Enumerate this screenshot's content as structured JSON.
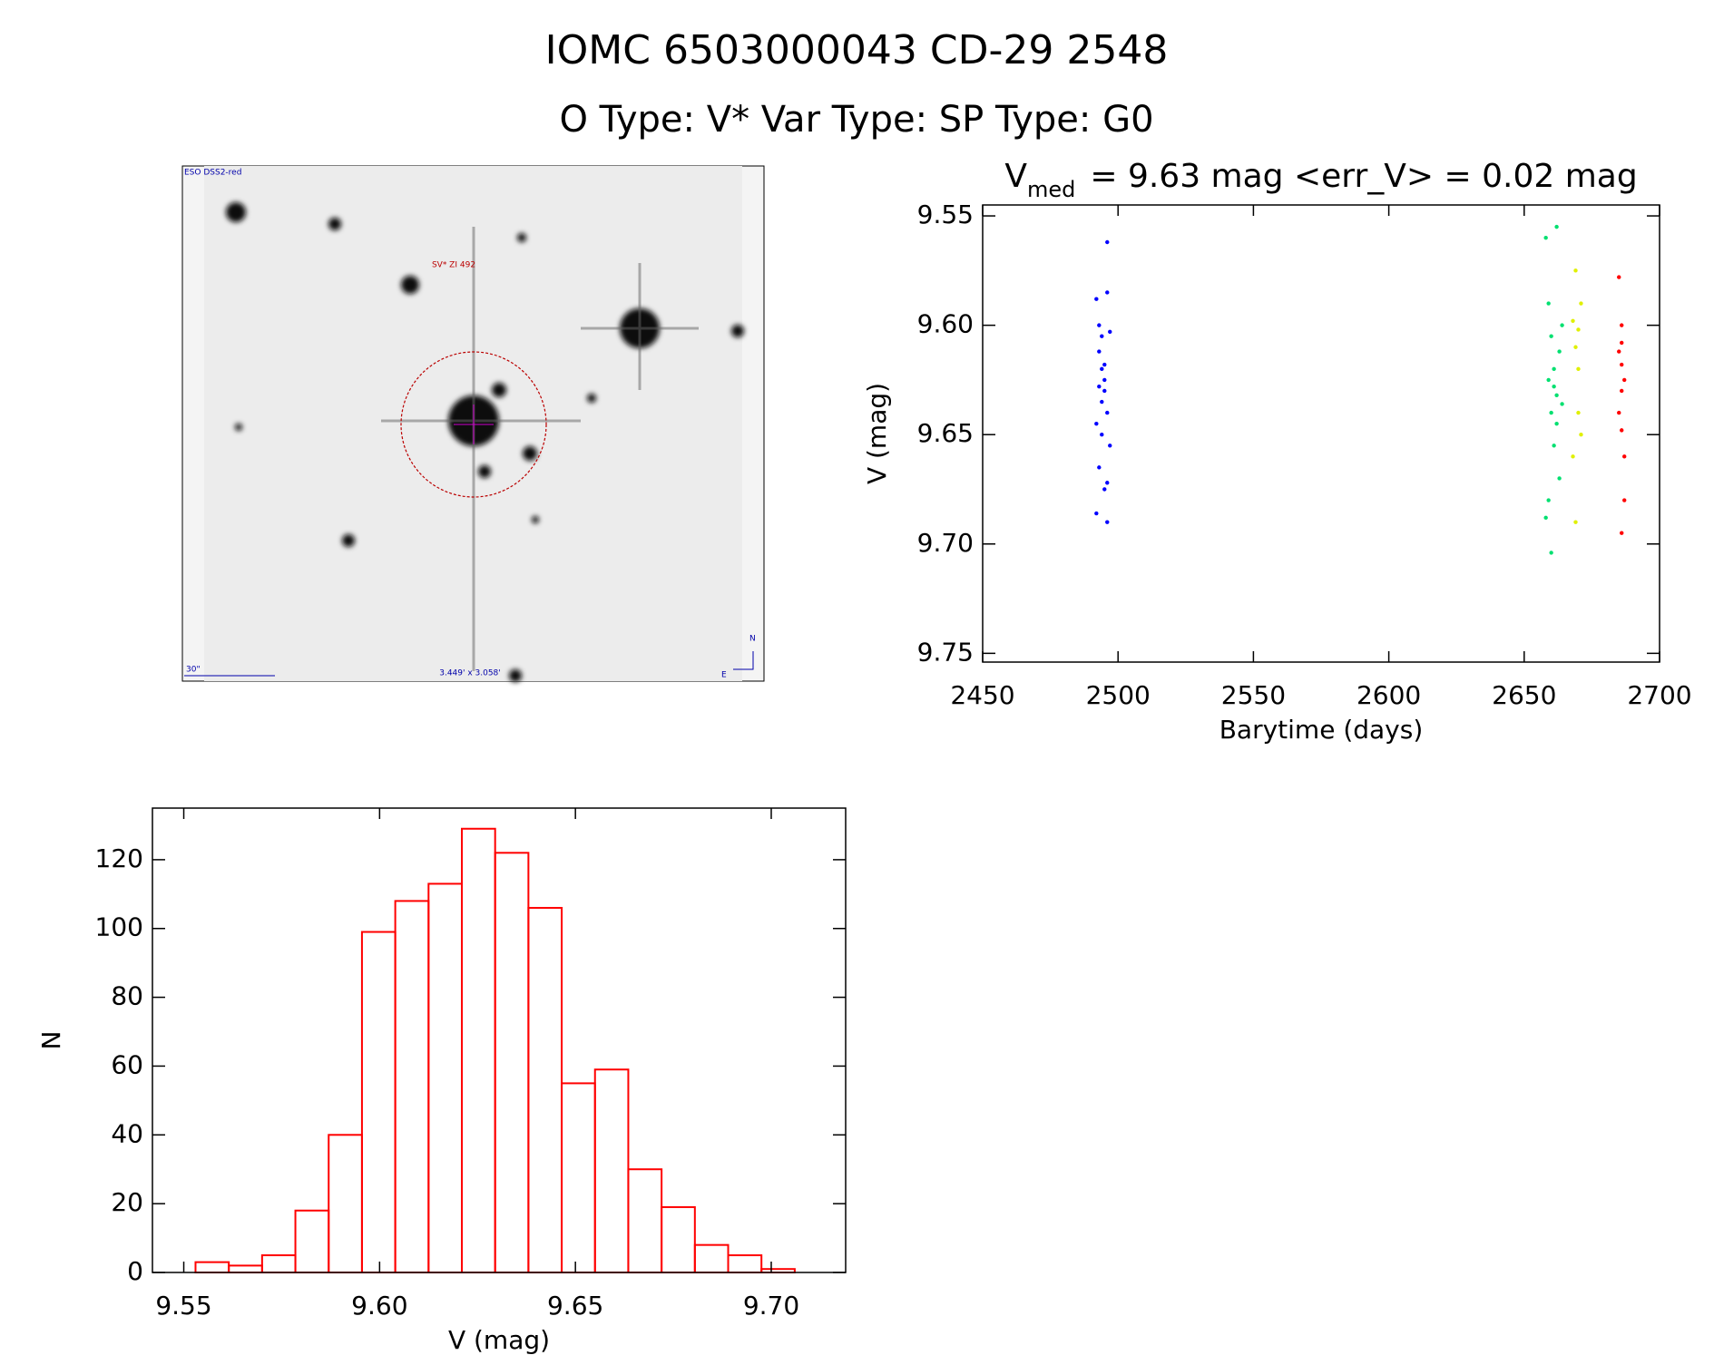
{
  "title": "IOMC 6503000043   CD-29  2548",
  "subtitle": "O Type: V*  Var Type:   SP Type: G0",
  "image": {
    "survey": "ESO DSS2-red",
    "target": "SV* ZI 492",
    "scale": "30\"",
    "fov": "3.449' x 3.058'",
    "north": "N",
    "east": "E"
  },
  "chart_data": [
    {
      "type": "scatter",
      "title": "V",
      "title_subscript": "med",
      "title_rest": "= 9.63 mag <err_V> = 0.02 mag",
      "x_label": "Barytime (days)",
      "y_label": "V (mag)",
      "xlim": [
        2450,
        2700
      ],
      "xticks": [
        2450,
        2500,
        2550,
        2600,
        2650,
        2700
      ],
      "ylim": [
        9.545,
        9.754
      ],
      "y_reversed": true,
      "yticks": [
        {
          "value": 9.55,
          "label": "9.55"
        },
        {
          "value": 9.6,
          "label": "9.60"
        },
        {
          "value": 9.65,
          "label": "9.65"
        },
        {
          "value": 9.7,
          "label": "9.70"
        },
        {
          "value": 9.75,
          "label": "9.75"
        }
      ],
      "series": [
        {
          "color": "#0000ff",
          "x": [
            2492,
            2493,
            2493,
            2494,
            2494,
            2495,
            2495,
            2496,
            2496,
            2492,
            2493,
            2494,
            2495,
            2496,
            2497,
            2492,
            2494,
            2495,
            2496,
            2497,
            2493,
            2496
          ],
          "values": [
            9.588,
            9.6,
            9.612,
            9.62,
            9.605,
            9.63,
            9.618,
            9.562,
            9.64,
            9.686,
            9.665,
            9.65,
            9.675,
            9.585,
            9.603,
            9.645,
            9.635,
            9.625,
            9.672,
            9.655,
            9.628,
            9.69
          ]
        },
        {
          "color": "#00e070",
          "x": [
            2658,
            2659,
            2659,
            2660,
            2660,
            2661,
            2661,
            2662,
            2662,
            2663,
            2663,
            2664,
            2658,
            2660,
            2662,
            2664,
            2659,
            2661
          ],
          "values": [
            9.56,
            9.59,
            9.625,
            9.64,
            9.605,
            9.655,
            9.62,
            9.555,
            9.632,
            9.67,
            9.612,
            9.6,
            9.688,
            9.704,
            9.645,
            9.636,
            9.68,
            9.628
          ]
        },
        {
          "color": "#e0f000",
          "x": [
            2668,
            2669,
            2669,
            2670,
            2670,
            2671,
            2668,
            2669,
            2670,
            2671
          ],
          "values": [
            9.598,
            9.575,
            9.61,
            9.602,
            9.64,
            9.59,
            9.66,
            9.69,
            9.62,
            9.65
          ]
        },
        {
          "color": "#ff0000",
          "x": [
            2685,
            2686,
            2686,
            2687,
            2685,
            2686,
            2687,
            2686,
            2685,
            2687,
            2686,
            2686
          ],
          "values": [
            9.578,
            9.6,
            9.618,
            9.625,
            9.64,
            9.63,
            9.66,
            9.695,
            9.612,
            9.68,
            9.648,
            9.608
          ]
        }
      ]
    },
    {
      "type": "histogram",
      "x_label": "V (mag)",
      "y_label": "N",
      "color": "#ff0000",
      "xlim": [
        9.542,
        9.719
      ],
      "xticks": [
        {
          "value": 9.55,
          "label": "9.55"
        },
        {
          "value": 9.6,
          "label": "9.60"
        },
        {
          "value": 9.65,
          "label": "9.65"
        },
        {
          "value": 9.7,
          "label": "9.70"
        }
      ],
      "ylim": [
        0,
        135
      ],
      "yticks": [
        0,
        20,
        40,
        60,
        80,
        100,
        120
      ],
      "bins": [
        9.553,
        9.5615,
        9.57,
        9.5785,
        9.587,
        9.5955,
        9.604,
        9.6125,
        9.621,
        9.6295,
        9.638,
        9.6465,
        9.655,
        9.6635,
        9.672,
        9.6805,
        9.689,
        9.6975,
        9.706
      ],
      "values": [
        3,
        2,
        5,
        18,
        40,
        99,
        108,
        113,
        129,
        122,
        106,
        55,
        59,
        30,
        19,
        8,
        5,
        1
      ]
    }
  ]
}
